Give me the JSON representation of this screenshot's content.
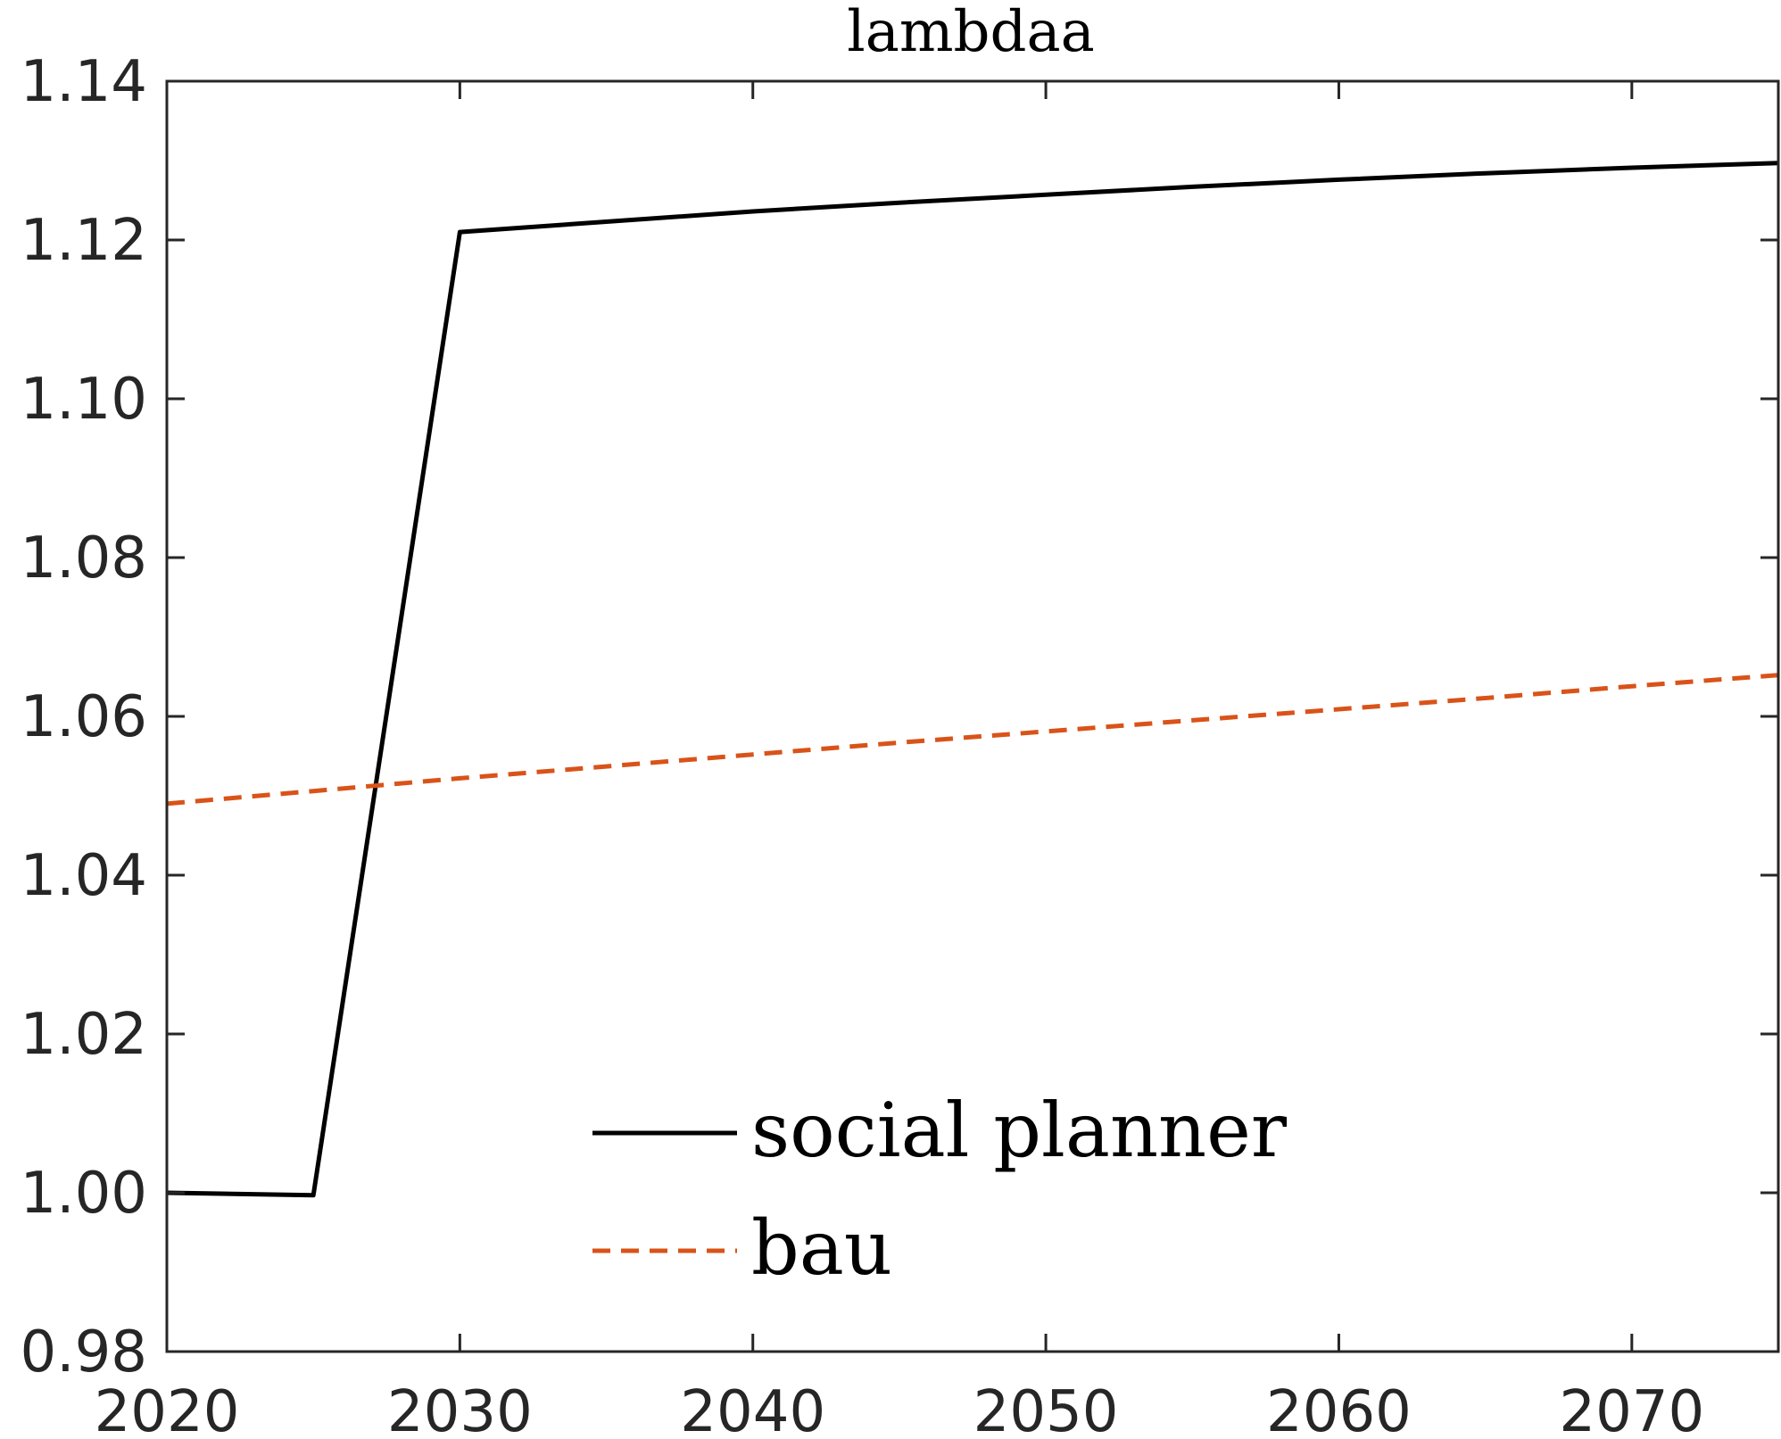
{
  "chart_data": {
    "type": "line",
    "title": "lambdaa",
    "xlabel": "",
    "ylabel": "",
    "xlim": [
      2020,
      2075
    ],
    "ylim": [
      0.98,
      1.14
    ],
    "x_ticks": [
      2020,
      2030,
      2040,
      2050,
      2060,
      2070
    ],
    "x_tick_labels": [
      "2020",
      "2030",
      "2040",
      "2050",
      "2060",
      "2070"
    ],
    "y_ticks": [
      0.98,
      1.0,
      1.02,
      1.04,
      1.06,
      1.08,
      1.1,
      1.12,
      1.14
    ],
    "y_tick_labels": [
      "0.98",
      "1.00",
      "1.02",
      "1.04",
      "1.06",
      "1.08",
      "1.10",
      "1.12",
      "1.14"
    ],
    "grid": false,
    "legend_position": "bottom-center",
    "series": [
      {
        "name": "social planner",
        "color": "#000000",
        "style": "solid",
        "x": [
          2020,
          2025,
          2030,
          2035,
          2040,
          2045,
          2050,
          2055,
          2060,
          2065,
          2070,
          2075
        ],
        "y": [
          1.0,
          0.9997,
          1.121,
          1.1223,
          1.1236,
          1.1247,
          1.1257,
          1.1267,
          1.1276,
          1.1284,
          1.1291,
          1.1297
        ]
      },
      {
        "name": "bau",
        "color": "#D95319",
        "style": "dashed",
        "x": [
          2020,
          2025,
          2030,
          2035,
          2040,
          2045,
          2050,
          2055,
          2060,
          2065,
          2070,
          2075
        ],
        "y": [
          1.049,
          1.0506,
          1.0522,
          1.0537,
          1.0552,
          1.0567,
          1.0581,
          1.0595,
          1.0609,
          1.0623,
          1.0638,
          1.0652
        ]
      }
    ]
  }
}
